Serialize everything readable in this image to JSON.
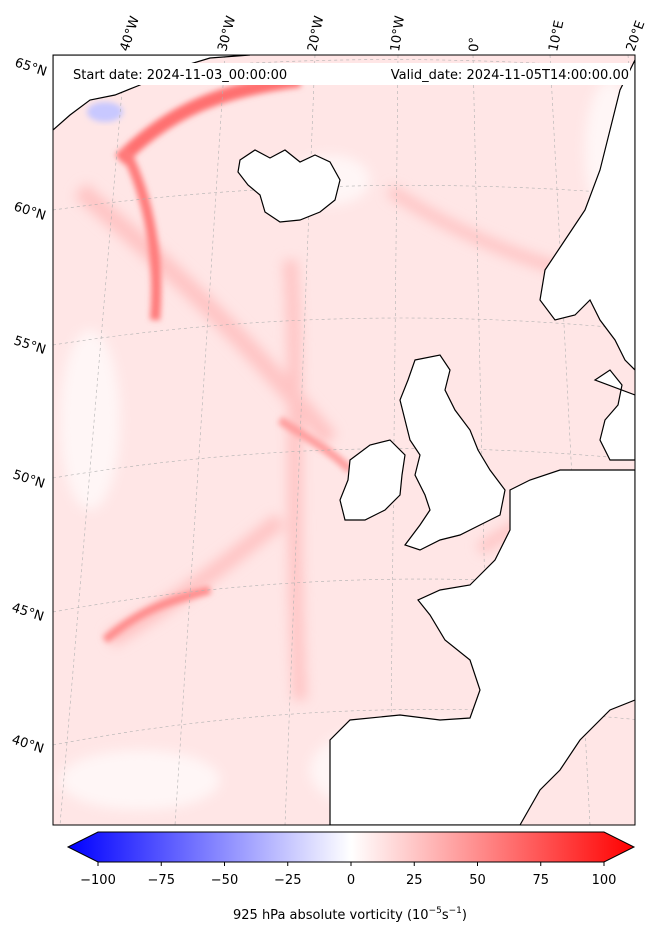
{
  "header": {
    "start_date": "Start date: 2024-11-03_00:00:00",
    "valid_date": "Valid_date: 2024-11-05T14:00:00.00"
  },
  "map": {
    "longitude_labels": [
      "40°W",
      "30°W",
      "20°W",
      "10°W",
      "0°",
      "10°E",
      "20°E"
    ],
    "latitude_labels": [
      "65°N",
      "60°N",
      "55°N",
      "50°N",
      "45°N",
      "40°N"
    ],
    "colors": {
      "coastline": "#000000",
      "gridline": "#b0b0b0",
      "weak_positive": "#ffe8e8",
      "strong_positive": "#ff3030",
      "negative": "#c8c8ff"
    }
  },
  "colorbar": {
    "ticks": [
      "−100",
      "−75",
      "−50",
      "−25",
      "0",
      "25",
      "50",
      "75",
      "100"
    ],
    "min": -100,
    "max": 100,
    "label": "925 hPa absolute vorticity (10",
    "label_exp1": "−5",
    "label_mid": "s",
    "label_exp2": "−1",
    "label_end": ")",
    "colors": {
      "low": "#0000ff",
      "mid": "#ffffff",
      "high": "#ff0000"
    }
  }
}
